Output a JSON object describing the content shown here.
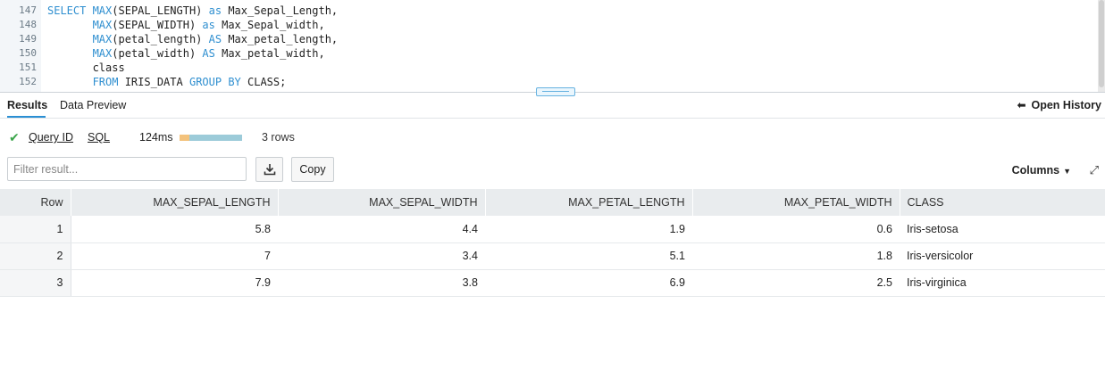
{
  "editor": {
    "lines": [
      {
        "num": "147",
        "parts": [
          {
            "t": "SELECT ",
            "k": true
          },
          {
            "t": "MAX",
            "k": true
          },
          {
            "t": "(SEPAL_LENGTH) ",
            "k": false
          },
          {
            "t": "as",
            "k": true
          },
          {
            "t": " Max_Sepal_Length,",
            "k": false
          }
        ]
      },
      {
        "num": "148",
        "parts": [
          {
            "t": "       ",
            "k": false
          },
          {
            "t": "MAX",
            "k": true
          },
          {
            "t": "(SEPAL_WIDTH) ",
            "k": false
          },
          {
            "t": "as",
            "k": true
          },
          {
            "t": " Max_Sepal_width,",
            "k": false
          }
        ]
      },
      {
        "num": "149",
        "parts": [
          {
            "t": "       ",
            "k": false
          },
          {
            "t": "MAX",
            "k": true
          },
          {
            "t": "(petal_length) ",
            "k": false
          },
          {
            "t": "AS",
            "k": true
          },
          {
            "t": " Max_petal_length,",
            "k": false
          }
        ]
      },
      {
        "num": "150",
        "parts": [
          {
            "t": "       ",
            "k": false
          },
          {
            "t": "MAX",
            "k": true
          },
          {
            "t": "(petal_width) ",
            "k": false
          },
          {
            "t": "AS",
            "k": true
          },
          {
            "t": " Max_petal_width,",
            "k": false
          }
        ]
      },
      {
        "num": "151",
        "parts": [
          {
            "t": "       class",
            "k": false
          }
        ]
      },
      {
        "num": "152",
        "parts": [
          {
            "t": "       ",
            "k": false
          },
          {
            "t": "FROM",
            "k": true
          },
          {
            "t": " IRIS_DATA ",
            "k": false
          },
          {
            "t": "GROUP BY",
            "k": true
          },
          {
            "t": " CLASS;",
            "k": false
          }
        ]
      }
    ],
    "keyword_color": "#2f8fd0"
  },
  "tabs": [
    {
      "label": "Results",
      "active": true
    },
    {
      "label": "Data Preview",
      "active": false
    }
  ],
  "open_history": "Open History",
  "query_info": {
    "query_id_label": "Query ID",
    "sql_label": "SQL",
    "duration": "124ms",
    "rows": "3 rows",
    "status_color": "#3aa54a"
  },
  "toolbar": {
    "filter_placeholder": "Filter result...",
    "copy_label": "Copy",
    "columns_label": "Columns",
    "download_icon": "download-icon",
    "expand_icon": "expand-icon"
  },
  "table": {
    "headers": [
      "Row",
      "MAX_SEPAL_LENGTH",
      "MAX_SEPAL_WIDTH",
      "MAX_PETAL_LENGTH",
      "MAX_PETAL_WIDTH",
      "CLASS"
    ],
    "rows": [
      [
        "1",
        "5.8",
        "4.4",
        "1.9",
        "0.6",
        "Iris-setosa"
      ],
      [
        "2",
        "7",
        "3.4",
        "5.1",
        "1.8",
        "Iris-versicolor"
      ],
      [
        "3",
        "7.9",
        "3.8",
        "6.9",
        "2.5",
        "Iris-virginica"
      ]
    ]
  }
}
